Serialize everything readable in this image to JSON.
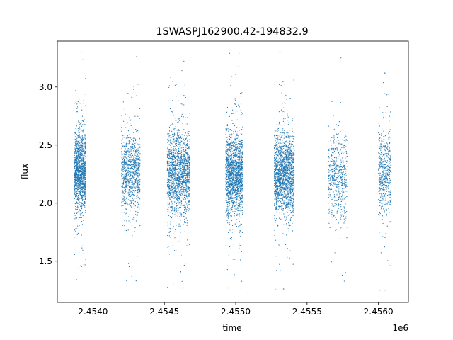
{
  "chart_data": {
    "type": "scatter",
    "title": "1SWASPJ162900.42-194832.9",
    "xlabel": "time",
    "ylabel": "flux",
    "x_offset_label": "1e6",
    "xlim": [
      2.45375,
      2.45621
    ],
    "ylim": [
      1.145,
      3.395
    ],
    "x_ticks": [
      2.454,
      2.4545,
      2.455,
      2.4555,
      2.456
    ],
    "x_tick_labels": [
      "2.4540",
      "2.4545",
      "2.4550",
      "2.4555",
      "2.4560"
    ],
    "y_ticks": [
      1.5,
      2.0,
      2.5,
      3.0
    ],
    "y_tick_labels": [
      "1.5",
      "2.0",
      "2.5",
      "3.0"
    ],
    "grid": false,
    "series": [
      {
        "color": "#1f77b4",
        "marker_size": 0.6,
        "clusters": [
          {
            "x_range": [
              2.45387,
              2.45395
            ],
            "y_center": 2.27,
            "y_spread": 0.17,
            "y_min": 1.27,
            "y_max": 3.3,
            "points": 1400
          },
          {
            "x_range": [
              2.4542,
              2.45433
            ],
            "y_center": 2.27,
            "y_spread": 0.16,
            "y_min": 1.33,
            "y_max": 3.26,
            "points": 1000
          },
          {
            "x_range": [
              2.45452,
              2.45468
            ],
            "y_center": 2.25,
            "y_spread": 0.18,
            "y_min": 1.27,
            "y_max": 3.26,
            "points": 1700
          },
          {
            "x_range": [
              2.45493,
              2.45505
            ],
            "y_center": 2.25,
            "y_spread": 0.18,
            "y_min": 1.27,
            "y_max": 3.29,
            "points": 1700
          },
          {
            "x_range": [
              2.45527,
              2.45541
            ],
            "y_center": 2.25,
            "y_spread": 0.17,
            "y_min": 1.26,
            "y_max": 3.3,
            "points": 1800
          },
          {
            "x_range": [
              2.45565,
              2.45578
            ],
            "y_center": 2.22,
            "y_spread": 0.18,
            "y_min": 1.26,
            "y_max": 3.25,
            "points": 550
          },
          {
            "x_range": [
              2.456,
              2.45609
            ],
            "y_center": 2.25,
            "y_spread": 0.18,
            "y_min": 1.25,
            "y_max": 3.12,
            "points": 550
          }
        ]
      }
    ]
  }
}
